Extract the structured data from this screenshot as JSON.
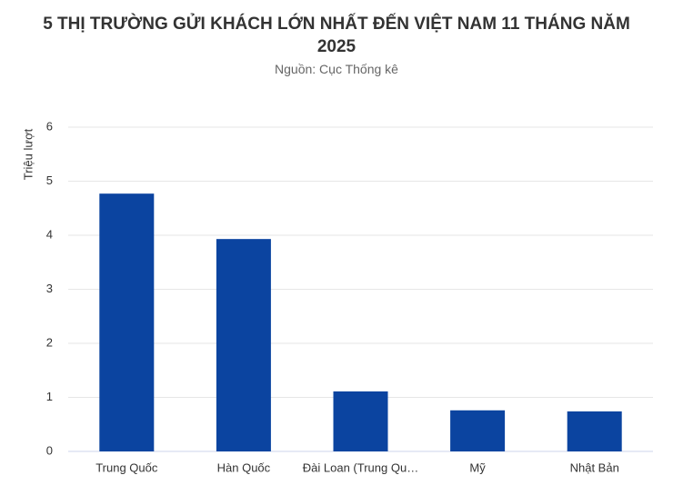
{
  "chart_data": {
    "type": "bar",
    "title": "5 THỊ TRƯỜNG GỬI KHÁCH LỚN NHẤT ĐẾN VIỆT NAM 11 THÁNG NĂM 2025",
    "subtitle": "Nguồn: Cục Thống kê",
    "y_label": "Triệu lượt",
    "categories": [
      "Trung Quốc",
      "Hàn Quốc",
      "Đài Loan (Trung Qu…",
      "Mỹ",
      "Nhật Bản"
    ],
    "values": [
      4.77,
      3.93,
      1.11,
      0.76,
      0.74
    ],
    "color": "#0b44a0",
    "ylim": [
      0,
      6
    ],
    "yticks": [
      0,
      1,
      2,
      3,
      4,
      5,
      6
    ],
    "grid": true
  }
}
